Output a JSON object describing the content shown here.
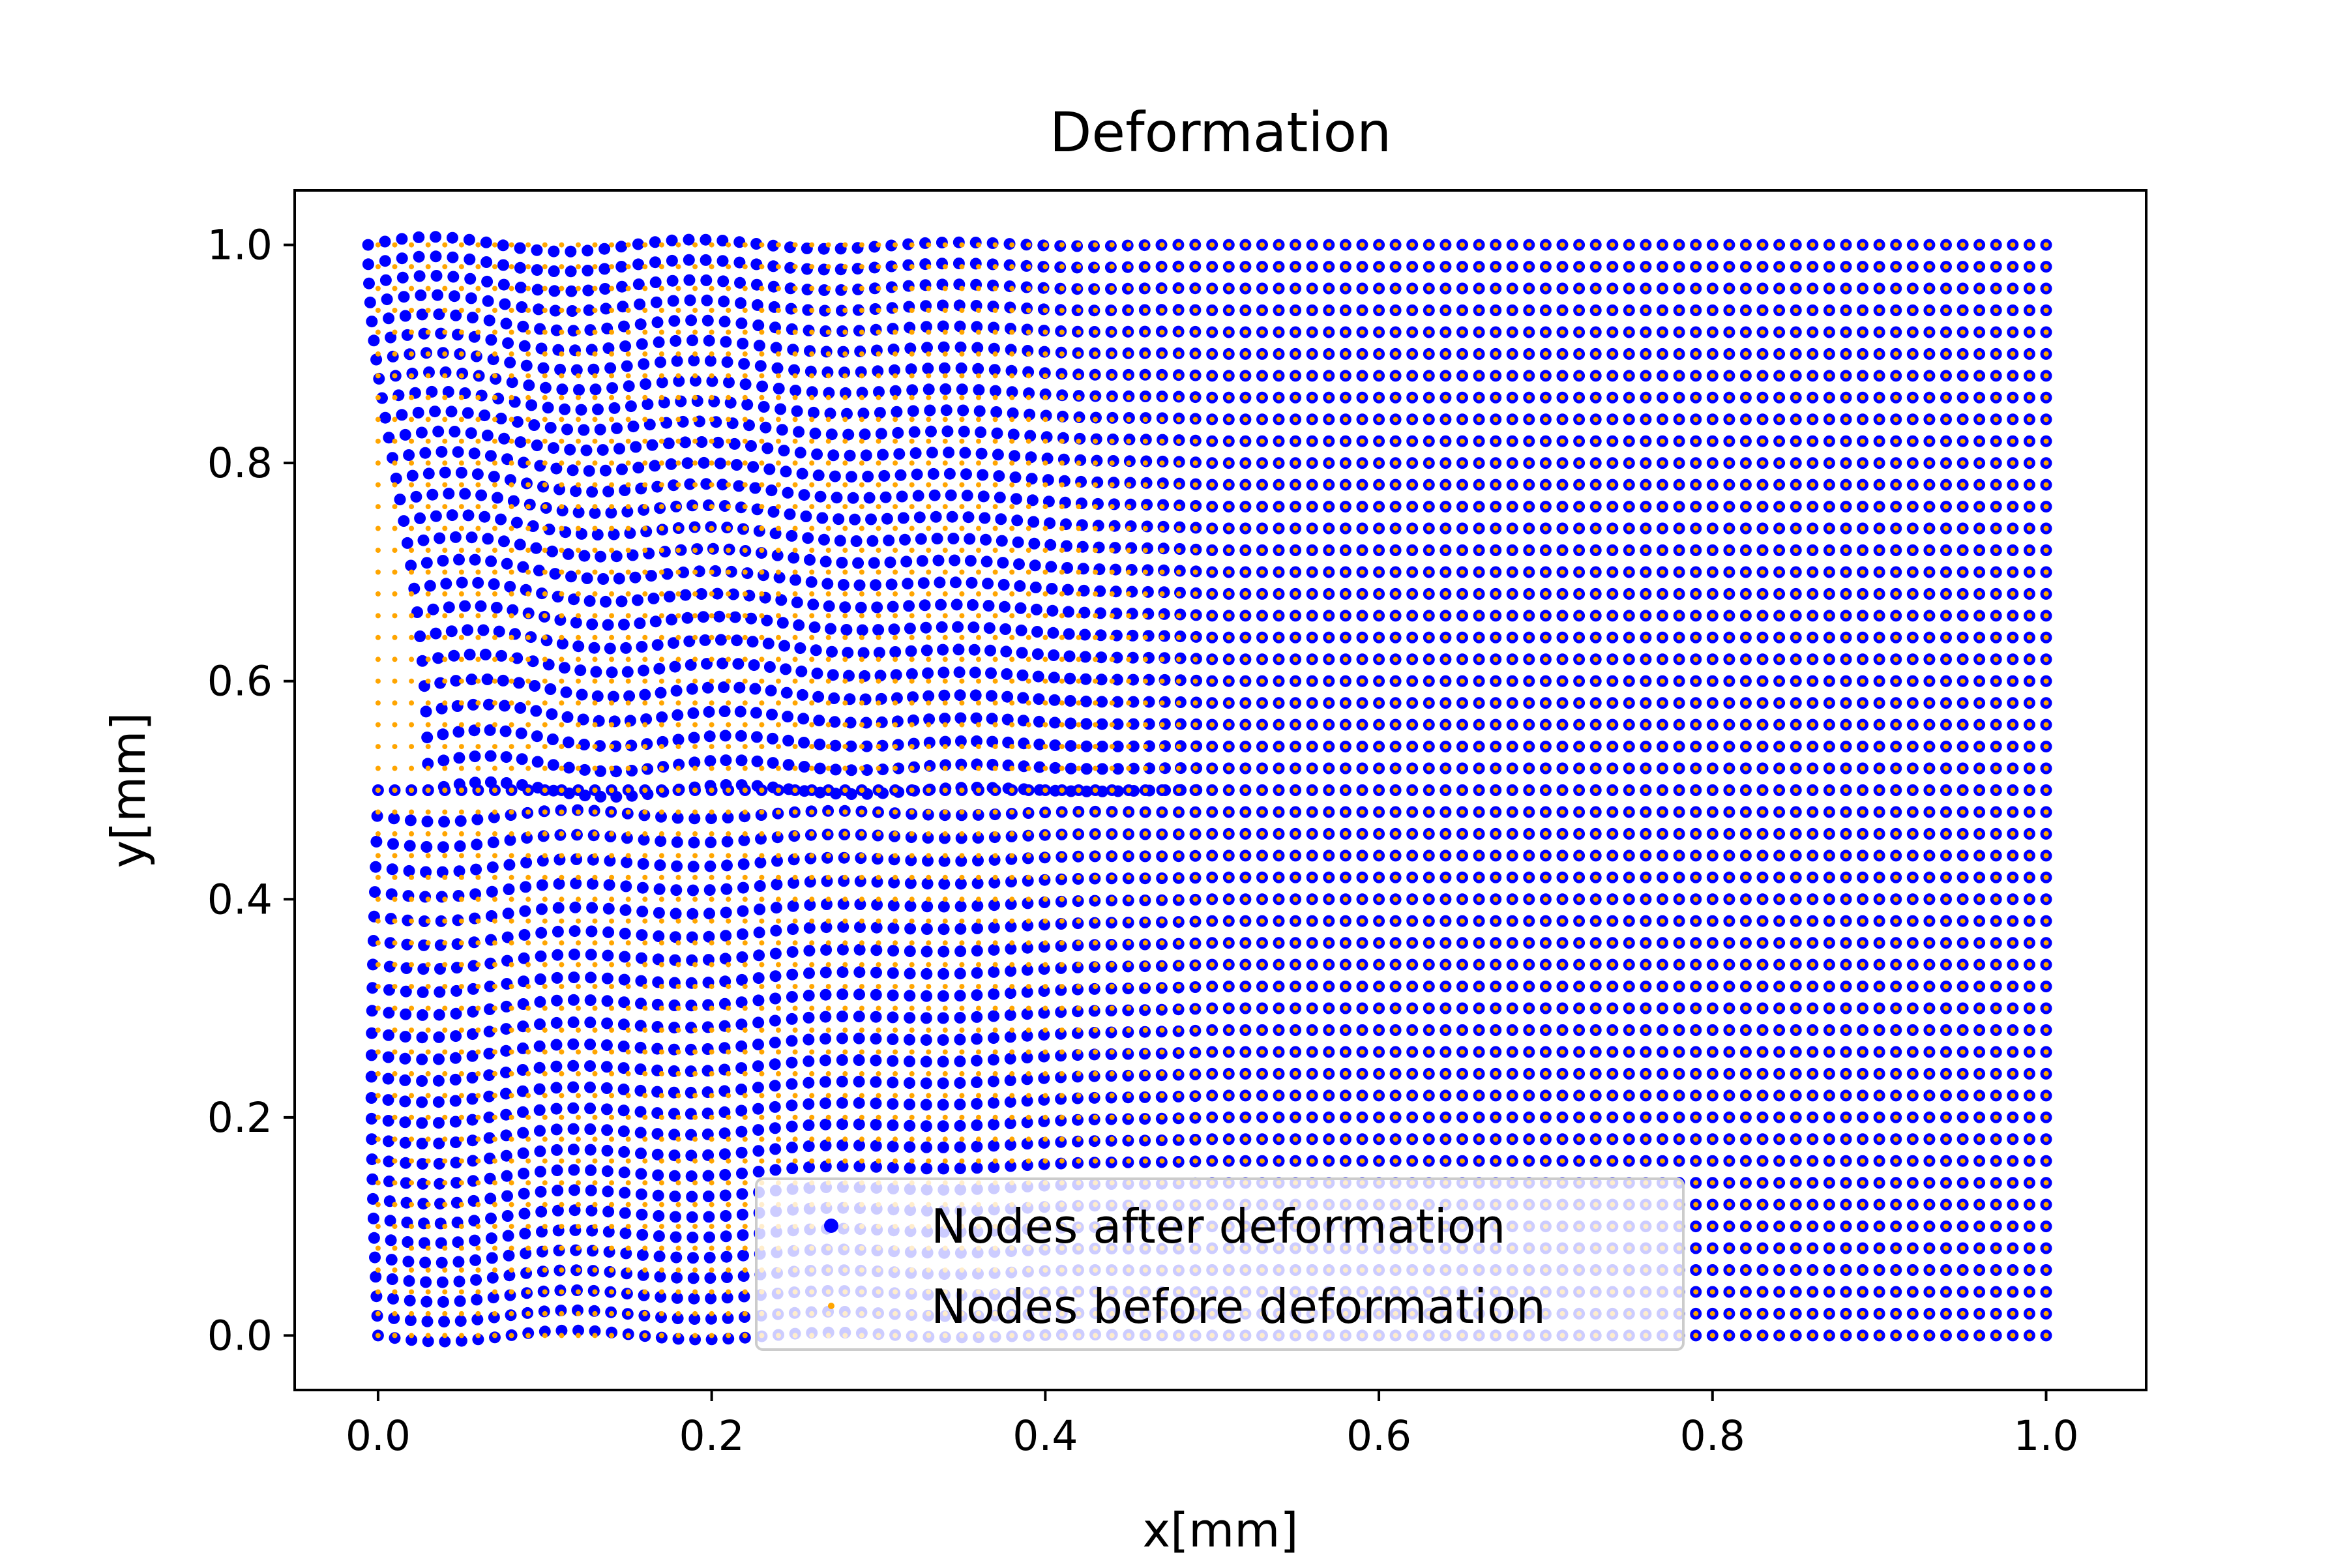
{
  "chart_data": {
    "type": "scatter",
    "title": "Deformation",
    "xlabel": "x[mm]",
    "ylabel": "y[mm]",
    "xlim": [
      -0.05,
      1.06
    ],
    "ylim": [
      -0.05,
      1.05
    ],
    "xticks": [
      0.0,
      0.2,
      0.4,
      0.6,
      0.8,
      1.0
    ],
    "xtick_labels": [
      "0.0",
      "0.2",
      "0.4",
      "0.6",
      "0.8",
      "1.0"
    ],
    "yticks": [
      0.0,
      0.2,
      0.4,
      0.6,
      0.8,
      1.0
    ],
    "ytick_labels": [
      "0.0",
      "0.2",
      "0.4",
      "0.6",
      "0.8",
      "1.0"
    ],
    "grid": false,
    "legend_position": "lower-center",
    "series": [
      {
        "name": "Nodes after deformation",
        "color": "#0000ff",
        "marker": "circle-large",
        "description_of_values": "Reference grid nodes on [0,1]x[0,1] displaced outward from a crack at y=0.5 for x<0.5; displacement largest near x=0, vanishing for x>0.5."
      },
      {
        "name": "Nodes before deformation",
        "color": "#ffa500",
        "marker": "circle-small",
        "description_of_values": "Regular grid: 101 columns from x=0.0 to 1.0 (step 0.01), 51 rows from y=0.0 to 1.0 (step 0.02), with the row y=0.5 duplicated on both crack faces."
      }
    ],
    "grid_nodes": {
      "x_start": 0.0,
      "x_end": 1.0,
      "x_count": 101,
      "y_start": 0.0,
      "y_end": 1.0,
      "y_count": 51,
      "crack_y": 0.5,
      "crack_tip_x": 0.5
    }
  }
}
